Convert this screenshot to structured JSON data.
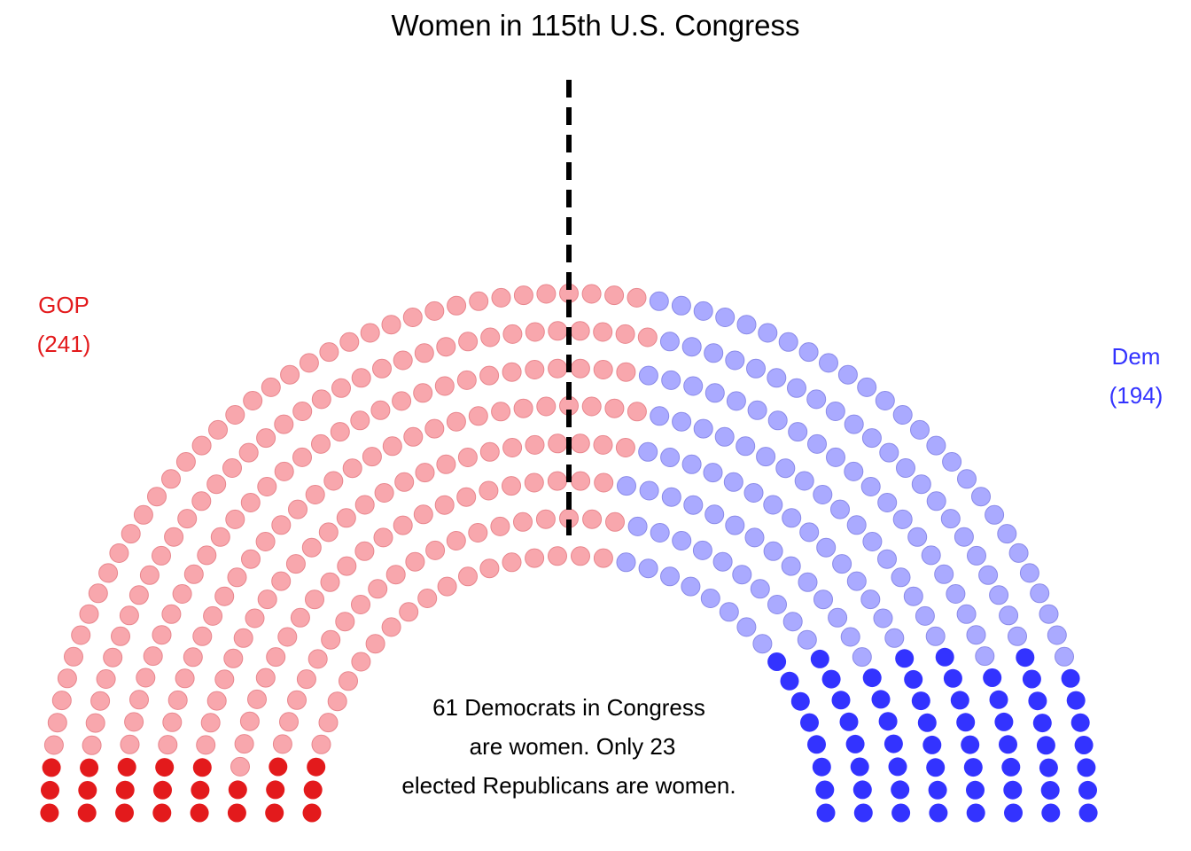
{
  "chart_data": {
    "type": "parliament",
    "title": "Women in 115th U.S. Congress",
    "total_seats": 435,
    "rows": 8,
    "series": [
      {
        "name": "GOP",
        "count_label": "(241)",
        "seats": 241,
        "women": 23,
        "color_women": "#e31a1c",
        "color_men": "#f8a7ad",
        "stroke_men": "#e8868d"
      },
      {
        "name": "Dem",
        "count_label": "(194)",
        "seats": 194,
        "women": 61,
        "color_women": "#3333ff",
        "color_men": "#aaaaff",
        "stroke_men": "#8a8ae8"
      }
    ],
    "majority_line": true,
    "annotation": [
      "61 Democrats in Congress",
      "are women. Only 23",
      "elected Republicans are women."
    ]
  }
}
